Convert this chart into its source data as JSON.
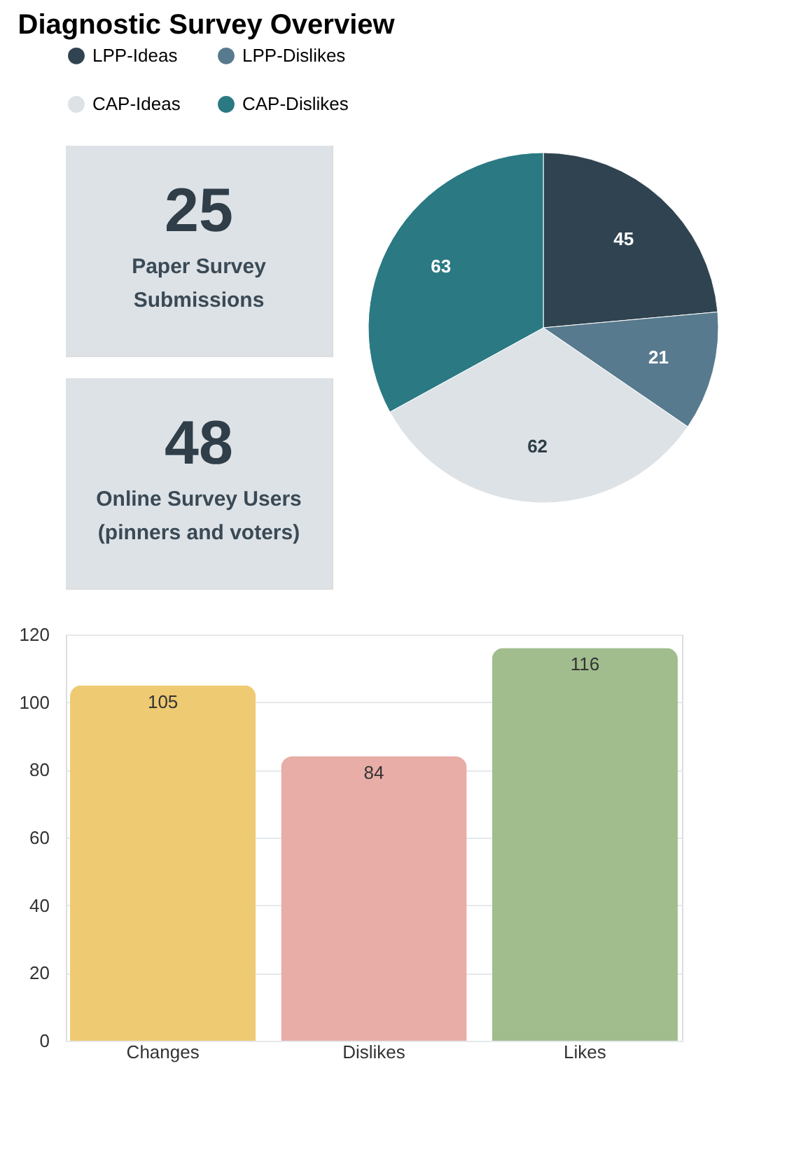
{
  "chart_data": [
    {
      "type": "other",
      "title": "Diagnostic Survey Overview",
      "annotations": [
        "25",
        "Paper Survey",
        "Submissions"
      ]
    },
    {
      "type": "other",
      "annotations": [
        "48",
        "Online Survey Users",
        "(pinners and voters)"
      ]
    },
    {
      "type": "pie",
      "categories": [
        "LPP-Ideas",
        "LPP-Dislikes",
        "CAP-Ideas",
        "CAP-Dislikes"
      ],
      "values": [
        45,
        21,
        62,
        63
      ],
      "colors": [
        "#2f4350",
        "#587a8e",
        "#dde2e7",
        "#2a7983"
      ],
      "data_labels": true,
      "legend": "top"
    },
    {
      "type": "bar",
      "categories": [
        "Changes",
        "Dislikes",
        "Likes"
      ],
      "values": [
        105,
        84,
        116
      ],
      "colors": [
        "#eeca72",
        "#e8ada7",
        "#a1bd8e"
      ],
      "ylim": [
        0,
        120
      ],
      "yticks": [
        0,
        20,
        40,
        60,
        80,
        100,
        120
      ],
      "grid": "y",
      "data_labels": true
    }
  ]
}
